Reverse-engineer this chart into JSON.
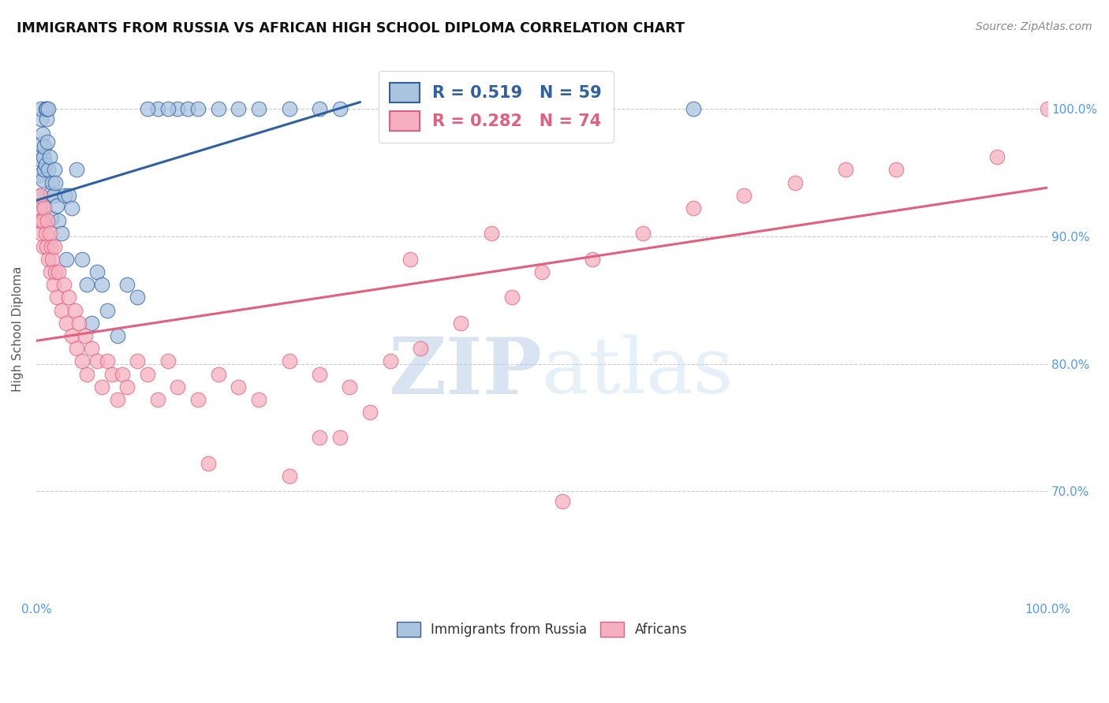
{
  "title": "IMMIGRANTS FROM RUSSIA VS AFRICAN HIGH SCHOOL DIPLOMA CORRELATION CHART",
  "source": "Source: ZipAtlas.com",
  "ylabel": "High School Diploma",
  "legend_blue_label": "Immigrants from Russia",
  "legend_pink_label": "Africans",
  "r_blue": "0.519",
  "n_blue": "59",
  "r_pink": "0.282",
  "n_pink": "74",
  "blue_scatter_color": "#aac4e0",
  "blue_line_color": "#3060a0",
  "pink_scatter_color": "#f5afc0",
  "pink_line_color": "#e06080",
  "tick_color": "#5599ee",
  "grid_color": "#cccccc",
  "blue_line_x0": 0.0,
  "blue_line_y0": 0.928,
  "blue_line_x1": 0.32,
  "blue_line_y1": 1.005,
  "pink_line_x0": 0.0,
  "pink_line_y0": 0.818,
  "pink_line_x1": 1.0,
  "pink_line_y1": 0.938,
  "xlim": [
    0.0,
    1.0
  ],
  "ylim": [
    0.615,
    1.04
  ],
  "yticks": [
    0.7,
    0.8,
    0.9,
    1.0
  ],
  "ytick_labels": [
    "70.0%",
    "80.0%",
    "90.0%",
    "100.0%"
  ],
  "xtick_labels_left": "0.0%",
  "xtick_labels_right": "100.0%",
  "blue_x": [
    0.002,
    0.003,
    0.004,
    0.004,
    0.005,
    0.005,
    0.005,
    0.006,
    0.006,
    0.007,
    0.007,
    0.008,
    0.008,
    0.009,
    0.009,
    0.01,
    0.01,
    0.011,
    0.012,
    0.012,
    0.013,
    0.014,
    0.015,
    0.016,
    0.017,
    0.018,
    0.019,
    0.02,
    0.022,
    0.025,
    0.028,
    0.03,
    0.032,
    0.035,
    0.04,
    0.045,
    0.05,
    0.055,
    0.06,
    0.065,
    0.07,
    0.08,
    0.09,
    0.1,
    0.12,
    0.14,
    0.18,
    0.22,
    0.28,
    0.3,
    0.13,
    0.15,
    0.16,
    0.2,
    0.25,
    0.11,
    0.38,
    0.5,
    0.65
  ],
  "blue_y": [
    0.948,
    0.963,
    0.972,
    0.932,
    0.96,
    0.992,
    1.0,
    0.944,
    0.98,
    0.924,
    0.962,
    0.952,
    0.97,
    1.0,
    0.956,
    0.992,
    1.0,
    0.974,
    0.952,
    1.0,
    0.962,
    0.934,
    0.914,
    0.942,
    0.932,
    0.952,
    0.942,
    0.924,
    0.912,
    0.902,
    0.932,
    0.882,
    0.932,
    0.922,
    0.952,
    0.882,
    0.862,
    0.832,
    0.872,
    0.862,
    0.842,
    0.822,
    0.862,
    0.852,
    1.0,
    1.0,
    1.0,
    1.0,
    1.0,
    1.0,
    1.0,
    1.0,
    1.0,
    1.0,
    1.0,
    1.0,
    1.0,
    1.0,
    1.0
  ],
  "pink_x": [
    0.002,
    0.003,
    0.004,
    0.005,
    0.005,
    0.006,
    0.007,
    0.008,
    0.009,
    0.01,
    0.011,
    0.012,
    0.013,
    0.014,
    0.015,
    0.016,
    0.017,
    0.018,
    0.019,
    0.02,
    0.022,
    0.025,
    0.027,
    0.03,
    0.032,
    0.035,
    0.038,
    0.04,
    0.042,
    0.045,
    0.048,
    0.05,
    0.055,
    0.06,
    0.065,
    0.07,
    0.075,
    0.08,
    0.085,
    0.09,
    0.1,
    0.11,
    0.12,
    0.13,
    0.14,
    0.16,
    0.18,
    0.2,
    0.22,
    0.25,
    0.28,
    0.31,
    0.35,
    0.38,
    0.42,
    0.47,
    0.37,
    0.17,
    0.25,
    0.3,
    0.28,
    0.52,
    0.33,
    0.45,
    0.5,
    0.55,
    0.6,
    0.65,
    0.7,
    0.75,
    0.8,
    0.85,
    0.95,
    1.0
  ],
  "pink_y": [
    0.912,
    0.922,
    0.932,
    0.902,
    0.912,
    0.912,
    0.892,
    0.922,
    0.902,
    0.892,
    0.912,
    0.882,
    0.902,
    0.872,
    0.892,
    0.882,
    0.862,
    0.892,
    0.872,
    0.852,
    0.872,
    0.842,
    0.862,
    0.832,
    0.852,
    0.822,
    0.842,
    0.812,
    0.832,
    0.802,
    0.822,
    0.792,
    0.812,
    0.802,
    0.782,
    0.802,
    0.792,
    0.772,
    0.792,
    0.782,
    0.802,
    0.792,
    0.772,
    0.802,
    0.782,
    0.772,
    0.792,
    0.782,
    0.772,
    0.802,
    0.792,
    0.782,
    0.802,
    0.812,
    0.832,
    0.852,
    0.882,
    0.722,
    0.712,
    0.742,
    0.742,
    0.692,
    0.762,
    0.902,
    0.872,
    0.882,
    0.902,
    0.922,
    0.932,
    0.942,
    0.952,
    0.952,
    0.962,
    1.0
  ]
}
